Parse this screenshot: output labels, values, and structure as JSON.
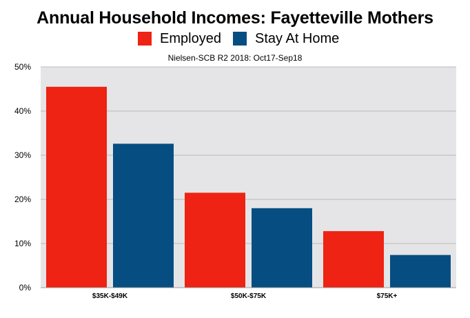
{
  "chart_data": {
    "type": "bar",
    "title": "Annual Household Incomes: Fayetteville Mothers",
    "subtitle": "Nielsen-SCB R2 2018: Oct17-Sep18",
    "xlabel": "",
    "ylabel": "",
    "categories": [
      "$35K-$49K",
      "$50K-$75K",
      "$75K+"
    ],
    "series": [
      {
        "name": "Employed",
        "color": "#ee2313",
        "values": [
          45.5,
          21.5,
          12.8
        ]
      },
      {
        "name": "Stay At Home",
        "color": "#064e82",
        "values": [
          32.6,
          18.0,
          7.4
        ]
      }
    ],
    "ylim": [
      0,
      50
    ],
    "y_ticks": [
      0,
      10,
      20,
      30,
      40,
      50
    ],
    "y_tick_labels": [
      "0%",
      "10%",
      "20%",
      "30%",
      "40%",
      "50%"
    ],
    "grid": true,
    "legend_position": "top-center",
    "plot_background": "#e5e5e7"
  }
}
